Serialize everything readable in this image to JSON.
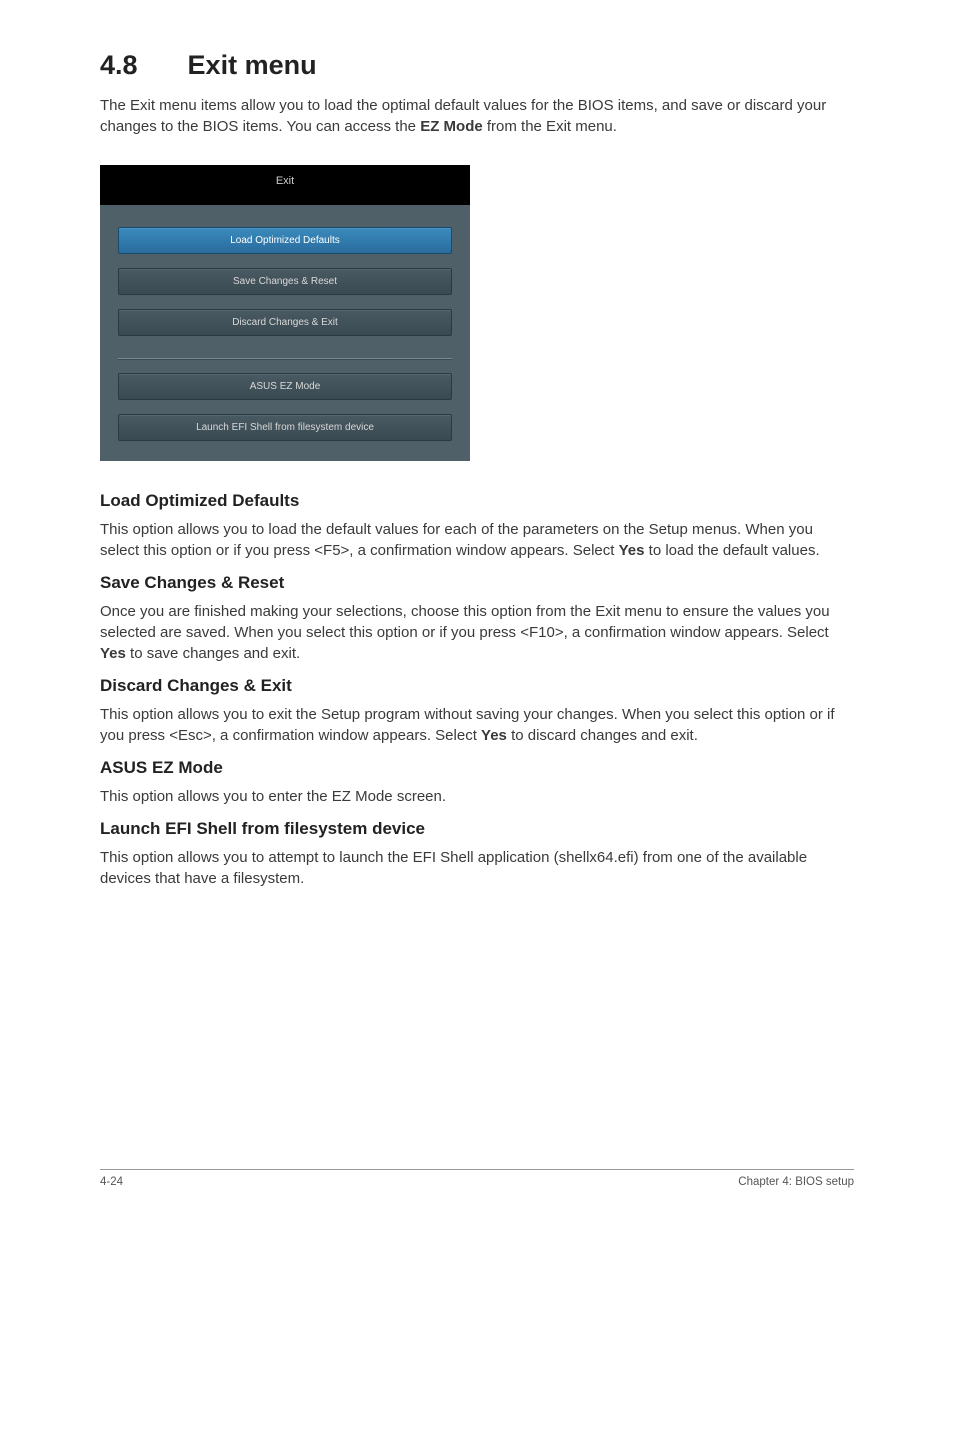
{
  "section": {
    "number": "4.8",
    "title": "Exit menu"
  },
  "intro": "The Exit menu items allow you to load the optimal default values for the BIOS items, and save or discard your changes to the BIOS items. You can access the EZ Mode from the Exit menu.",
  "intro_plain_before_bold": "The Exit menu items allow you to load the optimal default values for the BIOS items, and save or discard your changes to the BIOS items. You can access the ",
  "intro_bold": "EZ Mode",
  "intro_plain_after_bold": " from the Exit menu.",
  "bios": {
    "header": "Exit",
    "panel_bg": "#506068",
    "header_bg": "#000000",
    "btn_bg_top": "#4a5a62",
    "btn_bg_bottom": "#3a4a52",
    "selected_bg_top": "#3a8bbd",
    "selected_bg_bottom": "#2a6b9d",
    "items_top": [
      {
        "label": "Load Optimized Defaults",
        "selected": true
      },
      {
        "label": "Save Changes & Reset",
        "selected": false
      },
      {
        "label": "Discard Changes & Exit",
        "selected": false
      }
    ],
    "items_bottom": [
      {
        "label": "ASUS EZ Mode",
        "selected": false
      },
      {
        "label": "Launch EFI Shell from filesystem device",
        "selected": false
      }
    ]
  },
  "sections": {
    "load_defaults": {
      "heading": "Load Optimized Defaults",
      "text_before": "This option allows you to load the default values for each of the parameters on the Setup menus. When you select this option or if you press <F5>, a confirmation window appears. Select ",
      "bold": "Yes",
      "text_after": " to load the default values."
    },
    "save_reset": {
      "heading": "Save Changes & Reset",
      "text_before": "Once you are finished making your selections, choose this option from the Exit menu to ensure the values you selected are saved. When you select this option or if you press <F10>, a confirmation window appears. Select ",
      "bold": "Yes",
      "text_after": " to save changes and exit."
    },
    "discard_exit": {
      "heading": "Discard Changes & Exit",
      "text_before": "This option allows you to exit the Setup program without saving your changes. When you select this option or if you press <Esc>, a confirmation window appears. Select ",
      "bold": "Yes",
      "text_after": " to discard changes and exit."
    },
    "ez_mode": {
      "heading": "ASUS EZ Mode",
      "text": "This option allows you to enter the EZ Mode screen."
    },
    "efi_shell": {
      "heading": "Launch EFI Shell from filesystem device",
      "text": "This option allows you to attempt to launch the EFI Shell application (shellx64.efi) from one of the available devices that have a filesystem."
    }
  },
  "footer": {
    "left": "4-24",
    "right": "Chapter 4: BIOS setup"
  }
}
